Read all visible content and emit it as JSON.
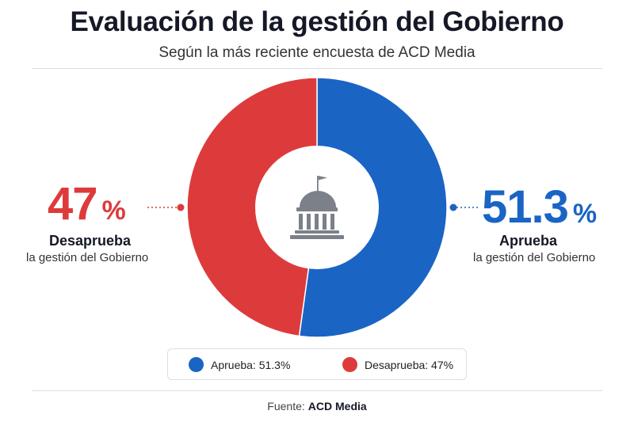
{
  "header": {
    "title": "Evaluación de la gestión del Gobierno",
    "subtitle": "Según la más reciente encuesta de ACD Media"
  },
  "chart_data": {
    "type": "pie",
    "title": "Evaluación de la gestión del Gobierno",
    "subtitle": "Según la más reciente encuesta de ACD Media",
    "categories": [
      "Aprueba",
      "Desaprueba"
    ],
    "values": [
      51.3,
      47
    ],
    "colors": [
      "#1a64c4",
      "#dd3b3b"
    ],
    "donut": true,
    "center_icon": "government-building-icon",
    "legend_position": "bottom",
    "legend": [
      "Aprueba: 51.3%",
      "Desaprueba: 47%"
    ]
  },
  "callouts": {
    "left": {
      "value": "47",
      "unit": "%",
      "label": "Desaprueba",
      "sublabel": "la gestión del Gobierno"
    },
    "right": {
      "value": "51.3",
      "unit": "%",
      "label": "Aprueba",
      "sublabel": "la gestión del Gobierno"
    }
  },
  "source": {
    "label": "Fuente:",
    "value": "ACD Media"
  }
}
